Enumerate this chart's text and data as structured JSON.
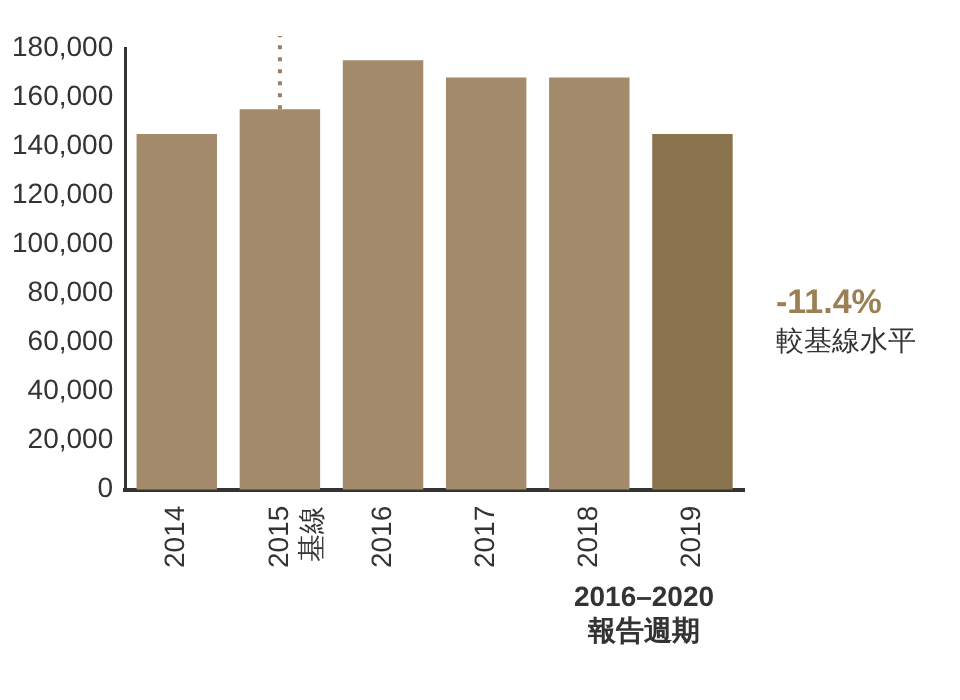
{
  "chart_data": {
    "type": "bar",
    "categories": [
      "2014",
      "2015\n基線",
      "2016",
      "2017",
      "2018",
      "2019"
    ],
    "values": [
      145000,
      155000,
      175000,
      168000,
      168000,
      145000
    ],
    "colors": [
      "#a38a6b",
      "#a38a6b",
      "#a38a6b",
      "#a38a6b",
      "#a38a6b",
      "#8b734e"
    ],
    "ylim": [
      0,
      180000
    ],
    "yticks": [
      {
        "value": 0,
        "label": "0"
      },
      {
        "value": 20000,
        "label": "20,000"
      },
      {
        "value": 40000,
        "label": "40,000"
      },
      {
        "value": 60000,
        "label": "60,000"
      },
      {
        "value": 80000,
        "label": "80,000"
      },
      {
        "value": 100000,
        "label": "100,000"
      },
      {
        "value": 120000,
        "label": "120,000"
      },
      {
        "value": 140000,
        "label": "140,000"
      },
      {
        "value": 160000,
        "label": "160,000"
      },
      {
        "value": 180000,
        "label": "180,000"
      }
    ],
    "ref_lines": [
      {
        "axis": "x",
        "value": "2015\n基線",
        "color": "#a0805e",
        "line_style": "dotted"
      }
    ],
    "annotations": [
      "-11.4%",
      "較基線水平",
      "2016–2020\n報告週期"
    ],
    "grid": false,
    "legend": false
  }
}
